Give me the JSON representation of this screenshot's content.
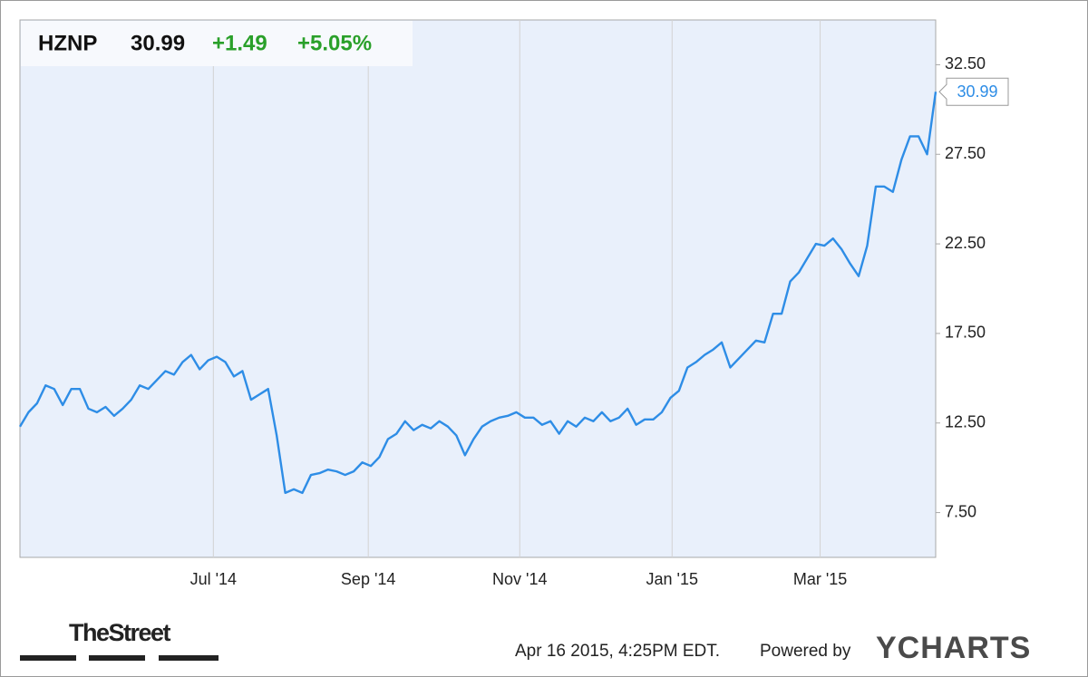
{
  "chart_data": {
    "type": "line",
    "ticker": "HZNP",
    "price": "30.99",
    "change": "+1.49",
    "change_percent": "+5.05%",
    "series": [
      {
        "color": "#2e8de6",
        "values": [
          12.3,
          13.1,
          13.6,
          14.6,
          14.4,
          13.5,
          14.4,
          14.4,
          13.3,
          13.1,
          13.4,
          12.9,
          13.3,
          13.8,
          14.6,
          14.4,
          14.9,
          15.4,
          15.2,
          15.9,
          16.3,
          15.5,
          16.0,
          16.2,
          15.9,
          15.1,
          15.4,
          13.8,
          14.1,
          14.4,
          11.8,
          8.6,
          8.8,
          8.6,
          9.6,
          9.7,
          9.9,
          9.8,
          9.6,
          9.8,
          10.3,
          10.1,
          10.6,
          11.6,
          11.9,
          12.6,
          12.1,
          12.4,
          12.2,
          12.6,
          12.3,
          11.8,
          10.7,
          11.6,
          12.3,
          12.6,
          12.8,
          12.9,
          13.1,
          12.8,
          12.8,
          12.4,
          12.6,
          11.9,
          12.6,
          12.3,
          12.8,
          12.6,
          13.1,
          12.6,
          12.8,
          13.3,
          12.4,
          12.7,
          12.7,
          13.1,
          13.9,
          14.3,
          15.6,
          15.9,
          16.3,
          16.6,
          17.0,
          15.6,
          16.1,
          16.6,
          17.1,
          17.0,
          18.6,
          18.6,
          20.4,
          20.9,
          21.7,
          22.5,
          22.4,
          22.8,
          22.2,
          21.4,
          20.7,
          22.4,
          25.7,
          25.7,
          25.4,
          27.2,
          28.5,
          28.5,
          27.5,
          30.99
        ]
      }
    ],
    "xlim": [
      0,
      107
    ],
    "xticks": [
      {
        "value": 22.6,
        "label": "Jul '14"
      },
      {
        "value": 40.7,
        "label": "Sep '14"
      },
      {
        "value": 58.4,
        "label": "Nov '14"
      },
      {
        "value": 76.2,
        "label": "Jan '15"
      },
      {
        "value": 93.5,
        "label": "Mar '15"
      }
    ],
    "ylim": [
      5,
      35
    ],
    "yticks": [
      {
        "value": 7.5,
        "label": "7.50"
      },
      {
        "value": 12.5,
        "label": "12.50"
      },
      {
        "value": 17.5,
        "label": "17.50"
      },
      {
        "value": 22.5,
        "label": "22.50"
      },
      {
        "value": 27.5,
        "label": "27.50"
      },
      {
        "value": 32.5,
        "label": "32.50"
      }
    ],
    "grid": true
  },
  "footer": {
    "logo": "TheStreet",
    "timestamp": "Apr 16 2015, 4:25PM EDT.",
    "powered_by": "Powered by",
    "brand": "YCHARTS"
  }
}
